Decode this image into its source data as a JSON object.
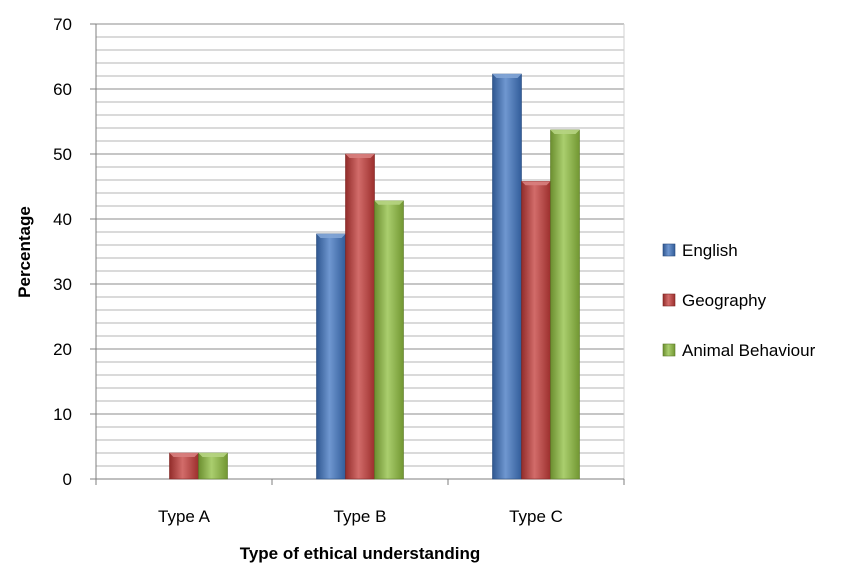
{
  "chart_data": {
    "type": "bar",
    "title": "",
    "xlabel": "Type of ethical understanding",
    "ylabel": "Percentage",
    "categories": [
      "Type A",
      "Type B",
      "Type C"
    ],
    "ylim": [
      0,
      70
    ],
    "yticks": [
      0,
      10,
      20,
      30,
      40,
      50,
      60,
      70
    ],
    "minor_gridlines_per_major": 5,
    "grid": true,
    "legend_position": "right",
    "series": [
      {
        "name": "English",
        "values": [
          0,
          37.7,
          62.3
        ],
        "color": "#3f74c0"
      },
      {
        "name": "Geography",
        "values": [
          4,
          50,
          45.8
        ],
        "color": "#c33b38"
      },
      {
        "name": "Animal Behaviour",
        "values": [
          4,
          42.8,
          53.7
        ],
        "color": "#8ebd3e"
      }
    ]
  }
}
